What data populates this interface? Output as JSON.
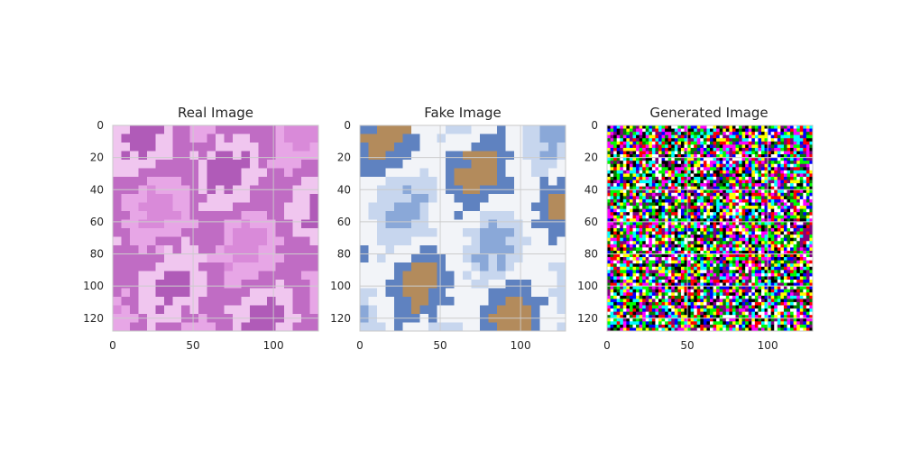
{
  "figure": {
    "panels": [
      {
        "id": "real",
        "title": "Real Image",
        "x_ticks": [
          0,
          50,
          100
        ],
        "y_ticks": [
          0,
          20,
          40,
          60,
          80,
          100,
          120
        ],
        "x_range": [
          0,
          128
        ],
        "y_range": [
          0,
          128
        ],
        "grid": true,
        "palette": [
          "#d98ad9",
          "#e7a6e6",
          "#c06cc4",
          "#f0c6ef",
          "#b05bb8"
        ]
      },
      {
        "id": "fake",
        "title": "Fake Image",
        "x_ticks": [
          0,
          50,
          100
        ],
        "y_ticks": [
          0,
          20,
          40,
          60,
          80,
          100,
          120
        ],
        "x_range": [
          0,
          128
        ],
        "y_range": [
          0,
          128
        ],
        "grid": true,
        "palette": [
          "#8aa8d8",
          "#c7d6ee",
          "#f2f4f8",
          "#5f82c0",
          "#b38b5c"
        ]
      },
      {
        "id": "generated",
        "title": "Generated Image",
        "x_ticks": [
          0,
          50,
          100
        ],
        "y_ticks": [
          0,
          20,
          40,
          60,
          80,
          100,
          120
        ],
        "x_range": [
          0,
          128
        ],
        "y_range": [
          0,
          128
        ],
        "grid": true,
        "palette": [
          "#000000",
          "#ff00ff",
          "#00ff00",
          "#ff0000",
          "#0000ff",
          "#ffffff",
          "#ffff00",
          "#00ffff",
          "#800080",
          "#008000"
        ]
      }
    ]
  }
}
